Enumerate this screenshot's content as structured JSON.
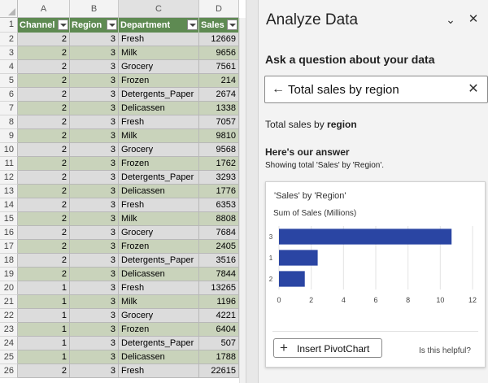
{
  "sheet": {
    "columns": [
      "A",
      "B",
      "C",
      "D"
    ],
    "headers": [
      "Channel",
      "Region",
      "Department",
      "Sales"
    ],
    "row_numbers": [
      "1",
      "2",
      "3",
      "4",
      "5",
      "6",
      "7",
      "8",
      "9",
      "10",
      "11",
      "12",
      "13",
      "14",
      "15",
      "16",
      "17",
      "18",
      "19",
      "20",
      "21",
      "22",
      "23",
      "24",
      "25",
      "26"
    ],
    "rows": [
      [
        "2",
        "3",
        "Fresh",
        "12669"
      ],
      [
        "2",
        "3",
        "Milk",
        "9656"
      ],
      [
        "2",
        "3",
        "Grocery",
        "7561"
      ],
      [
        "2",
        "3",
        "Frozen",
        "214"
      ],
      [
        "2",
        "3",
        "Detergents_Paper",
        "2674"
      ],
      [
        "2",
        "3",
        "Delicassen",
        "1338"
      ],
      [
        "2",
        "3",
        "Fresh",
        "7057"
      ],
      [
        "2",
        "3",
        "Milk",
        "9810"
      ],
      [
        "2",
        "3",
        "Grocery",
        "9568"
      ],
      [
        "2",
        "3",
        "Frozen",
        "1762"
      ],
      [
        "2",
        "3",
        "Detergents_Paper",
        "3293"
      ],
      [
        "2",
        "3",
        "Delicassen",
        "1776"
      ],
      [
        "2",
        "3",
        "Fresh",
        "6353"
      ],
      [
        "2",
        "3",
        "Milk",
        "8808"
      ],
      [
        "2",
        "3",
        "Grocery",
        "7684"
      ],
      [
        "2",
        "3",
        "Frozen",
        "2405"
      ],
      [
        "2",
        "3",
        "Detergents_Paper",
        "3516"
      ],
      [
        "2",
        "3",
        "Delicassen",
        "7844"
      ],
      [
        "1",
        "3",
        "Fresh",
        "13265"
      ],
      [
        "1",
        "3",
        "Milk",
        "1196"
      ],
      [
        "1",
        "3",
        "Grocery",
        "4221"
      ],
      [
        "1",
        "3",
        "Frozen",
        "6404"
      ],
      [
        "1",
        "3",
        "Detergents_Paper",
        "507"
      ],
      [
        "1",
        "3",
        "Delicassen",
        "1788"
      ],
      [
        "2",
        "3",
        "Fresh",
        "22615"
      ]
    ]
  },
  "pane": {
    "title": "Analyze Data",
    "collapse_icon": "chevron-down-icon",
    "close_icon": "close-icon",
    "ask_heading": "Ask a question about your data",
    "query": "Total sales by region",
    "interpreted_prefix": "Total sales by ",
    "interpreted_field": "region",
    "answer_heading": "Here's our answer",
    "answer_sub": "Showing total 'Sales' by 'Region'.",
    "card_title": "'Sales' by 'Region'",
    "card_sub": "Sum of Sales (Millions)",
    "insert_label": "Insert PivotChart",
    "helpful_label": "Is this helpful?"
  },
  "colors": {
    "header_green": "#5e8a52",
    "band_green": "#c9d3bb",
    "band_gray": "#dcdcdc",
    "bar_blue": "#2a45a3"
  },
  "chart_data": {
    "type": "bar",
    "orientation": "horizontal",
    "title": "'Sales' by 'Region'",
    "subtitle": "Sum of Sales (Millions)",
    "categories": [
      "3",
      "1",
      "2"
    ],
    "values": [
      10.7,
      2.4,
      1.6
    ],
    "xlim": [
      0,
      12
    ],
    "xticks": [
      "0",
      "2",
      "4",
      "6",
      "8",
      "10",
      "12"
    ],
    "grid": true
  }
}
